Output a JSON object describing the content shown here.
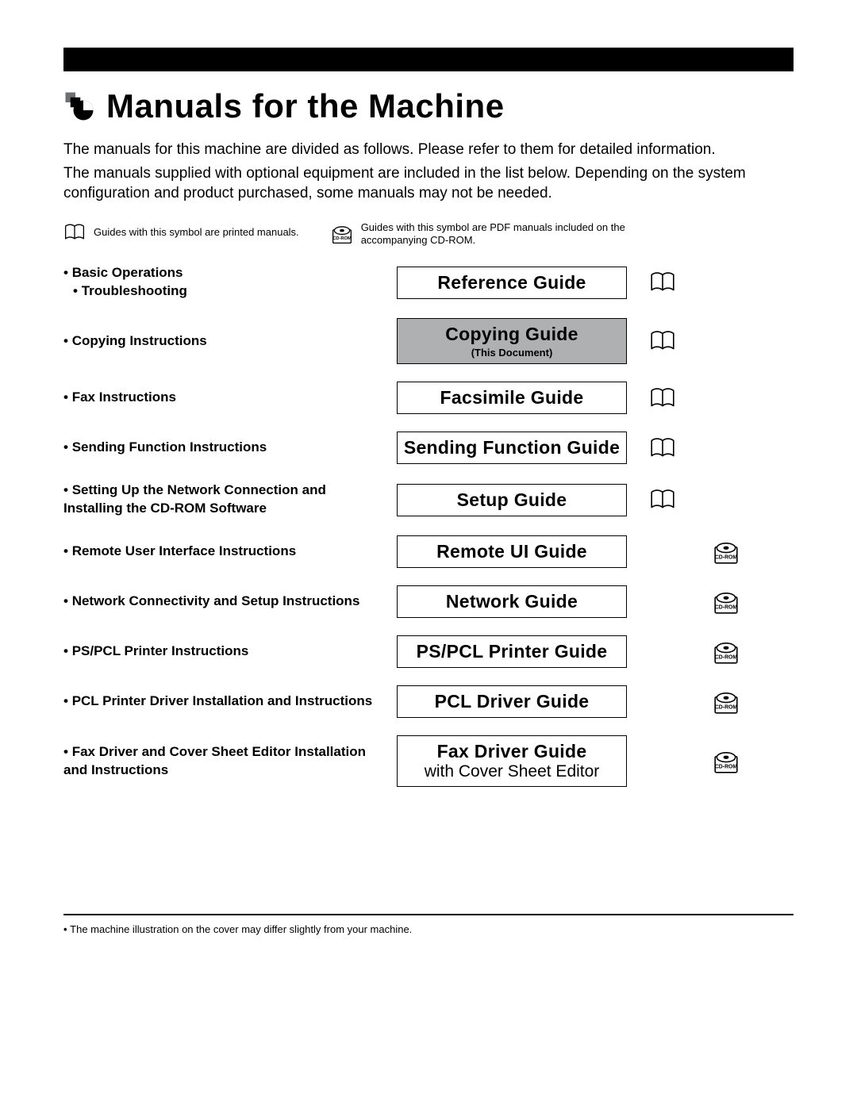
{
  "title": "Manuals for the Machine",
  "intro_line1": "The manuals for this machine are divided as follows. Please refer to them for detailed information.",
  "intro_line2": "The manuals supplied with optional equipment are included in the list below. Depending on the system configuration and product purchased, some manuals may not be needed.",
  "legend": {
    "printed": "Guides with this symbol are printed manuals.",
    "cdrom": "Guides with this symbol are PDF manuals included on the accompanying CD-ROM."
  },
  "rows": [
    {
      "bullets": [
        "Basic Operations",
        "Troubleshooting"
      ],
      "sub_first": false,
      "guide_title": "Reference Guide",
      "guide_sub": "",
      "guide_note": "",
      "current": false,
      "printed": true,
      "cdrom": false
    },
    {
      "bullets": [
        "Copying Instructions"
      ],
      "sub_first": false,
      "guide_title": "Copying Guide",
      "guide_sub": "",
      "guide_note": "(This Document)",
      "current": true,
      "printed": true,
      "cdrom": false
    },
    {
      "bullets": [
        "Fax Instructions"
      ],
      "sub_first": false,
      "guide_title": "Facsimile Guide",
      "guide_sub": "",
      "guide_note": "",
      "current": false,
      "printed": true,
      "cdrom": false
    },
    {
      "bullets": [
        "Sending Function Instructions"
      ],
      "sub_first": false,
      "guide_title": "Sending Function Guide",
      "guide_sub": "",
      "guide_note": "",
      "current": false,
      "printed": true,
      "cdrom": false
    },
    {
      "bullets": [
        "Setting Up the Network Connection and Installing the CD-ROM Software"
      ],
      "sub_first": false,
      "guide_title": "Setup Guide",
      "guide_sub": "",
      "guide_note": "",
      "current": false,
      "printed": true,
      "cdrom": false
    },
    {
      "bullets": [
        "Remote User Interface Instructions"
      ],
      "sub_first": false,
      "guide_title": "Remote UI Guide",
      "guide_sub": "",
      "guide_note": "",
      "current": false,
      "printed": false,
      "cdrom": true
    },
    {
      "bullets": [
        "Network Connectivity and Setup Instructions"
      ],
      "sub_first": false,
      "guide_title": "Network Guide",
      "guide_sub": "",
      "guide_note": "",
      "current": false,
      "printed": false,
      "cdrom": true
    },
    {
      "bullets": [
        "PS/PCL Printer Instructions"
      ],
      "sub_first": false,
      "guide_title": "PS/PCL Printer Guide",
      "guide_sub": "",
      "guide_note": "",
      "current": false,
      "printed": false,
      "cdrom": true
    },
    {
      "bullets": [
        "PCL Printer Driver Installation and Instructions"
      ],
      "sub_first": false,
      "guide_title": "PCL Driver Guide",
      "guide_sub": "",
      "guide_note": "",
      "current": false,
      "printed": false,
      "cdrom": true
    },
    {
      "bullets": [
        "Fax Driver and Cover Sheet Editor Installation and Instructions"
      ],
      "sub_first": false,
      "guide_title": "Fax Driver Guide",
      "guide_sub": "with Cover Sheet Editor",
      "guide_note": "",
      "current": false,
      "printed": false,
      "cdrom": true
    }
  ],
  "footnote": "The machine illustration on the cover may differ slightly from your machine.",
  "colors": {
    "current_bg": "#aeb0b2",
    "text": "#000000",
    "page_bg": "#ffffff"
  }
}
